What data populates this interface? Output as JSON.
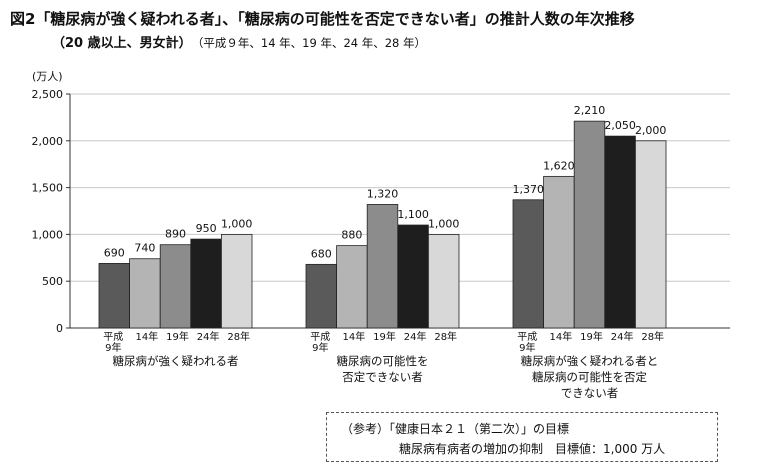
{
  "header": {
    "title": "図2「糖尿病が強く疑われる者」、「糖尿病の可能性を否定できない者」の推計人数の年次推移",
    "subtitle_main": "（20 歳以上、男女計）",
    "subtitle_years": "（平成９年、14 年、19 年、24 年、28 年）"
  },
  "chart_data": {
    "type": "bar",
    "ylabel": "(万人)",
    "ylim": [
      0,
      2500
    ],
    "yticks": [
      "0",
      "500",
      "1,000",
      "1,500",
      "2,000",
      "2,500"
    ],
    "grid": true,
    "years": [
      "平成\n9年",
      "14年",
      "19年",
      "24年",
      "28年"
    ],
    "colors": [
      "#5a5a5a",
      "#b4b4b4",
      "#8c8c8c",
      "#1e1e1e",
      "#d8d8d8"
    ],
    "groups": [
      {
        "label": [
          "糖尿病が強く疑われる者"
        ],
        "values": [
          690,
          740,
          890,
          950,
          1000
        ],
        "value_labels": [
          "690",
          "740",
          "890",
          "950",
          "1,000"
        ]
      },
      {
        "label": [
          "糖尿病の可能性を",
          "否定できない者"
        ],
        "values": [
          680,
          880,
          1320,
          1100,
          1000
        ],
        "value_labels": [
          "680",
          "880",
          "1,320",
          "1,100",
          "1,000"
        ]
      },
      {
        "label": [
          "糖尿病が強く疑われる者と",
          "糖尿病の可能性を否定",
          "できない者"
        ],
        "values": [
          1370,
          1620,
          2210,
          2050,
          2000
        ],
        "value_labels": [
          "1,370",
          "1,620",
          "2,210",
          "2,050",
          "2,000"
        ]
      }
    ]
  },
  "reference": {
    "line1": "（参考）「健康日本２１（第二次）」の目標",
    "line2": "糖尿病有病者の増加の抑制　目標値：1,000 万人"
  }
}
